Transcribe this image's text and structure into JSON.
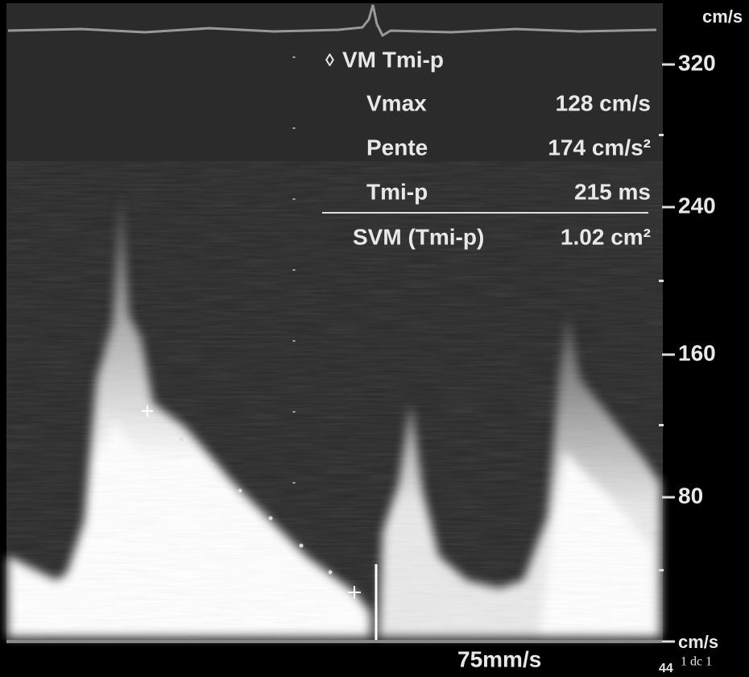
{
  "scale": {
    "unit_top": "cm/s",
    "ticks": [
      "320",
      "240",
      "160",
      "80"
    ],
    "unit_bottom": "cm/s"
  },
  "measurement": {
    "title": "VM Tmi-p",
    "rows": [
      [
        "Vmax",
        "128 cm/s"
      ],
      [
        "Pente",
        "174 cm/s²"
      ],
      [
        "Tmi-p",
        "215 ms"
      ]
    ],
    "result": [
      "SVM (Tmi-p)",
      "1.02 cm²"
    ]
  },
  "footer": {
    "sweep": "75mm/s",
    "left_code": "44",
    "right_code": "1 dc 1"
  }
}
